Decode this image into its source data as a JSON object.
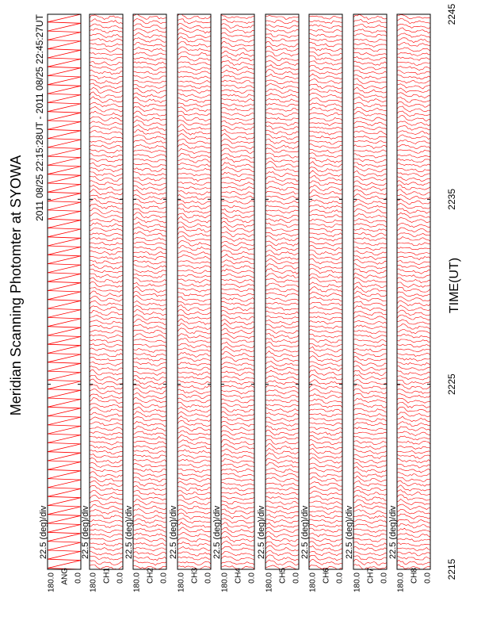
{
  "title": "Meridian Scanning Photomter at SYOWA",
  "subtitle": "2011 08/25 22:15:28UT - 2011 08/25 22:45:27UT",
  "chart_data": {
    "type": "line",
    "xlabel": "TIME(UT)",
    "xlim": [
      2215,
      2245
    ],
    "xticks": [
      2215,
      2225,
      2235,
      2245
    ],
    "ylim": [
      0,
      180
    ],
    "yticks": [
      {
        "value": 0,
        "label": "0.0"
      },
      {
        "value": 180,
        "label": "180.0"
      }
    ],
    "scale_label": "22.5 (deg)/div",
    "color": "#ff0000",
    "panels": [
      "ANG",
      "CH1",
      "CH2",
      "CH3",
      "CH4",
      "CH5",
      "CH6",
      "CH7",
      "CH8"
    ]
  }
}
